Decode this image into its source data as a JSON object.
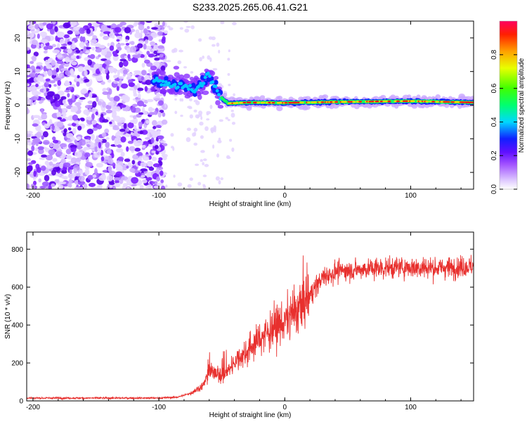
{
  "title": "S233.2025.265.06.41.G21",
  "chart_data": [
    {
      "type": "heatmap",
      "panel": "top",
      "xlabel": "Height of straight line (km)",
      "ylabel": "Frequency (Hz)",
      "xlim": [
        -205,
        150
      ],
      "ylim": [
        -25,
        25
      ],
      "xticks": [
        -200,
        -100,
        0,
        100
      ],
      "yticks": [
        -20,
        -10,
        0,
        10,
        20
      ],
      "colorbar": {
        "label": "Normalized spectral amplitude",
        "range": [
          0,
          1
        ],
        "ticks": [
          0.0,
          0.2,
          0.4,
          0.6,
          0.8
        ]
      },
      "ridge": {
        "description_points_x": [
          -105,
          -90,
          -70,
          -60,
          -55,
          -50,
          -45,
          -30,
          0,
          50,
          100,
          150
        ],
        "description_points_freq": [
          8,
          6,
          5,
          9,
          5,
          2,
          0.5,
          0.8,
          0.7,
          1.0,
          1.2,
          0.8
        ]
      }
    },
    {
      "type": "line",
      "panel": "bottom",
      "xlabel": "Height of straight line (km)",
      "ylabel": "SNR (10 * v/v)",
      "xlim": [
        -205,
        150
      ],
      "ylim": [
        0,
        890
      ],
      "xticks": [
        -200,
        -100,
        0,
        100
      ],
      "yticks": [
        0,
        200,
        400,
        600,
        800
      ],
      "color": "#e8302e",
      "series": [
        {
          "name": "SNR",
          "x": [
            -205,
            -150,
            -100,
            -85,
            -75,
            -65,
            -60,
            -55,
            -50,
            -45,
            -40,
            -30,
            -20,
            -10,
            0,
            10,
            20,
            30,
            40,
            50,
            75,
            100,
            125,
            150
          ],
          "values": [
            15,
            15,
            15,
            20,
            40,
            80,
            150,
            160,
            120,
            160,
            210,
            260,
            330,
            380,
            420,
            480,
            560,
            650,
            680,
            690,
            700,
            705,
            700,
            710
          ]
        }
      ]
    }
  ]
}
